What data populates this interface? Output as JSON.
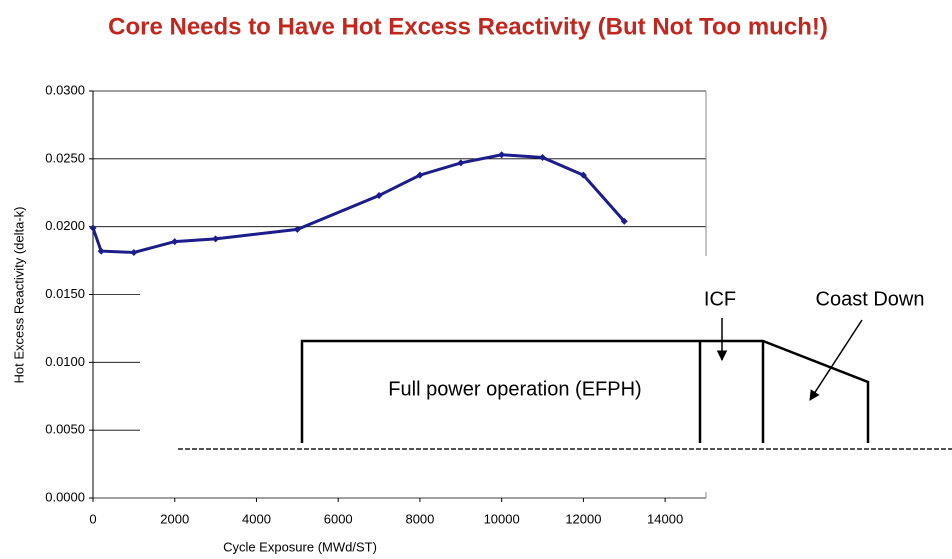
{
  "chart_data": {
    "type": "line",
    "title": "Core Needs to Have Hot Excess Reactivity (But Not Too much!)",
    "x_label": "Cycle Exposure (MWd/ST)",
    "y_label": "Hot Excess Reactivity (delta-k)",
    "x": [
      0,
      200,
      1000,
      2000,
      3000,
      5000,
      7000,
      8000,
      9000,
      10000,
      11000,
      12000,
      13000
    ],
    "series": [
      {
        "color": "#1c1c8a",
        "values": [
          0.0199,
          0.0182,
          0.0181,
          0.0189,
          0.0191,
          0.0198,
          0.0223,
          0.0238,
          0.0247,
          0.0253,
          0.0251,
          0.0238,
          0.0204
        ]
      }
    ],
    "xlim": [
      0,
      15000
    ],
    "xticks": [
      0,
      2000,
      4000,
      6000,
      8000,
      10000,
      12000,
      14000
    ],
    "ylim": [
      0,
      0.03
    ],
    "yticks": [
      {
        "value": 0,
        "label": "0.0000"
      },
      {
        "value": 0.005,
        "label": "0.0050"
      },
      {
        "value": 0.01,
        "label": "0.0100"
      },
      {
        "value": 0.015,
        "label": "0.0150"
      },
      {
        "value": 0.02,
        "label": "0.0200"
      },
      {
        "value": 0.025,
        "label": "0.0250"
      },
      {
        "value": 0.03,
        "label": "0.0300"
      }
    ],
    "grid": true,
    "annotations": [
      "ICF",
      "Coast Down",
      "Full power operation (EFPH)"
    ]
  }
}
